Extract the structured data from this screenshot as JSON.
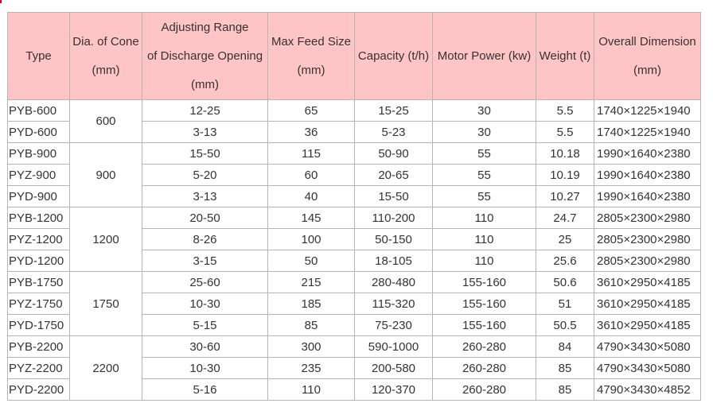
{
  "headers": {
    "type": [
      "Type"
    ],
    "cone": [
      "Dia. of Cone",
      "(mm)"
    ],
    "range": [
      "Adjusting Range",
      "of Discharge Opening",
      "(mm)"
    ],
    "feed": [
      "Max Feed Size",
      "(mm)"
    ],
    "capacity": [
      "Capacity (t/h)"
    ],
    "power": [
      "Motor Power (kw)"
    ],
    "weight": [
      "Weight (t)"
    ],
    "dimension": [
      "Overall Dimension",
      "(mm)"
    ]
  },
  "groups": [
    {
      "cone": "600",
      "rows": [
        {
          "type": "PYB-600",
          "range": "12-25",
          "feed": "65",
          "capacity": "15-25",
          "power": "30",
          "weight": "5.5",
          "dimension": "1740×1225×1940"
        },
        {
          "type": "PYD-600",
          "range": "3-13",
          "feed": "36",
          "capacity": "5-23",
          "power": "30",
          "weight": "5.5",
          "dimension": "1740×1225×1940"
        }
      ]
    },
    {
      "cone": "900",
      "rows": [
        {
          "type": "PYB-900",
          "range": "15-50",
          "feed": "115",
          "capacity": "50-90",
          "power": "55",
          "weight": "10.18",
          "dimension": "1990×1640×2380"
        },
        {
          "type": "PYZ-900",
          "range": "5-20",
          "feed": "60",
          "capacity": "20-65",
          "power": "55",
          "weight": "10.19",
          "dimension": "1990×1640×2380"
        },
        {
          "type": "PYD-900",
          "range": "3-13",
          "feed": "40",
          "capacity": "15-50",
          "power": "55",
          "weight": "10.27",
          "dimension": "1990×1640×2380"
        }
      ]
    },
    {
      "cone": "1200",
      "rows": [
        {
          "type": "PYB-1200",
          "range": "20-50",
          "feed": "145",
          "capacity": "110-200",
          "power": "110",
          "weight": "24.7",
          "dimension": "2805×2300×2980"
        },
        {
          "type": "PYZ-1200",
          "range": "8-26",
          "feed": "100",
          "capacity": "50-150",
          "power": "110",
          "weight": "25",
          "dimension": "2805×2300×2980"
        },
        {
          "type": "PYD-1200",
          "range": "3-15",
          "feed": "50",
          "capacity": "18-105",
          "power": "110",
          "weight": "25.6",
          "dimension": "2805×2300×2980"
        }
      ]
    },
    {
      "cone": "1750",
      "rows": [
        {
          "type": "PYB-1750",
          "range": "25-60",
          "feed": "215",
          "capacity": "280-480",
          "power": "155-160",
          "weight": "50.6",
          "dimension": "3610×2950×4185"
        },
        {
          "type": "PYZ-1750",
          "range": "10-30",
          "feed": "185",
          "capacity": "115-320",
          "power": "155-160",
          "weight": "51",
          "dimension": "3610×2950×4185"
        },
        {
          "type": "PYD-1750",
          "range": "5-15",
          "feed": "85",
          "capacity": "75-230",
          "power": "155-160",
          "weight": "50.5",
          "dimension": "3610×2950×4185"
        }
      ]
    },
    {
      "cone": "2200",
      "rows": [
        {
          "type": "PYB-2200",
          "range": "30-60",
          "feed": "300",
          "capacity": "590-1000",
          "power": "260-280",
          "weight": "84",
          "dimension": "4790×3430×5080"
        },
        {
          "type": "PYZ-2200",
          "range": "10-30",
          "feed": "235",
          "capacity": "200-580",
          "power": "260-280",
          "weight": "85",
          "dimension": "4790×3430×5080"
        },
        {
          "type": "PYD-2200",
          "range": "5-16",
          "feed": "110",
          "capacity": "120-370",
          "power": "260-280",
          "weight": "85",
          "dimension": "4790×3430×4852"
        }
      ]
    }
  ]
}
